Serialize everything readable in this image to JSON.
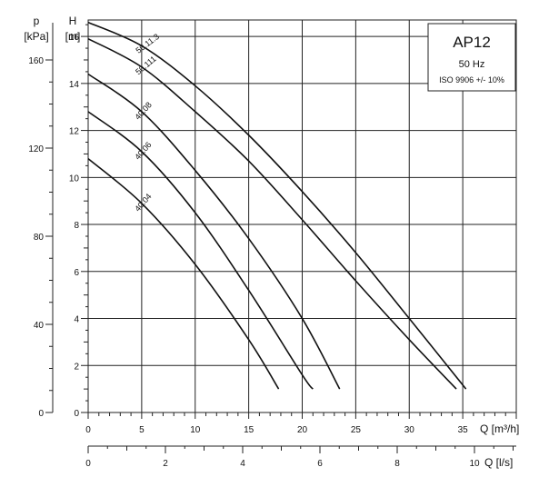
{
  "chart_data": {
    "type": "line",
    "title": "AP12",
    "info_box": {
      "frequency": "50 Hz",
      "tolerance": "ISO 9906 +/- 10%"
    },
    "axes": {
      "pressure": {
        "symbol": "p",
        "unit": "[kPa]",
        "ticks": [
          0,
          40,
          80,
          120,
          160
        ],
        "range": [
          0,
          164
        ]
      },
      "head": {
        "symbol": "H",
        "unit": "[m]",
        "ticks": [
          0,
          2,
          4,
          6,
          8,
          10,
          12,
          14,
          16
        ],
        "range": [
          0,
          16.7
        ]
      },
      "flow_m3h": {
        "label": "Q [m³/h]",
        "ticks": [
          0,
          5,
          10,
          15,
          20,
          25,
          30,
          35
        ],
        "range": [
          0,
          40
        ]
      },
      "flow_ls": {
        "label": "Q [l/s]",
        "ticks": [
          0,
          2,
          4,
          6,
          8,
          10
        ],
        "range": [
          0,
          11.1
        ]
      }
    },
    "grid": true,
    "series": [
      {
        "name": "50.11.3",
        "x": [
          0,
          5,
          10,
          15,
          20,
          25,
          30,
          35.3
        ],
        "y": [
          16.6,
          15.6,
          13.9,
          11.8,
          9.4,
          6.8,
          4.0,
          1.0
        ]
      },
      {
        "name": "50.111",
        "x": [
          0,
          5,
          10,
          15,
          20,
          25,
          30,
          34.4
        ],
        "y": [
          15.9,
          14.7,
          12.8,
          10.7,
          8.2,
          5.6,
          3.1,
          1.0
        ]
      },
      {
        "name": "40.08",
        "x": [
          0,
          5,
          10,
          15,
          20,
          23.5
        ],
        "y": [
          14.4,
          12.8,
          10.3,
          7.4,
          4.0,
          1.0
        ]
      },
      {
        "name": "40.06",
        "x": [
          0,
          5,
          10,
          15,
          20,
          21.0
        ],
        "y": [
          12.8,
          11.1,
          8.5,
          5.2,
          1.6,
          1.0
        ]
      },
      {
        "name": "40.04",
        "x": [
          0,
          5,
          10,
          15,
          17.8
        ],
        "y": [
          10.8,
          8.9,
          6.3,
          3.1,
          1.0
        ]
      }
    ],
    "curve_labels": [
      "50.11.3",
      "50.111",
      "40.08",
      "40.06",
      "40.04"
    ]
  }
}
